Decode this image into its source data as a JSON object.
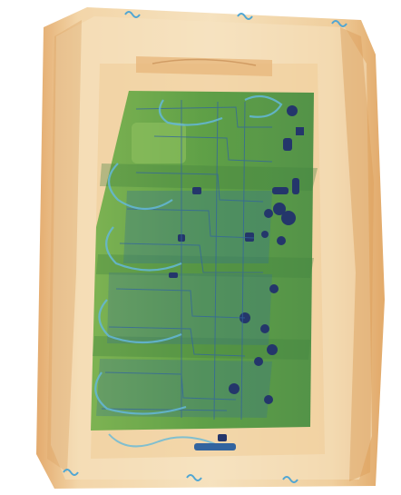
{
  "image": {
    "kind": "x-ray-baggage-scan",
    "palette": {
      "background": "#ffffff",
      "organic_light": "#f3d9ae",
      "organic": "#e9b77a",
      "organic_dark": "#d89a55",
      "inorganic_green": "#4f9a3a",
      "inorganic_green_light": "#7fb84d",
      "metal_blue": "#2b5f9c",
      "metal_dark": "#1d2f66",
      "cable_cyan": "#5fb6d8"
    },
    "contents": [
      {
        "name": "outer-case",
        "material": "organic"
      },
      {
        "name": "circuit-board-stack",
        "material": "inorganic"
      },
      {
        "name": "cable-loops",
        "material": "metal"
      },
      {
        "name": "connector",
        "material": "metal"
      }
    ]
  }
}
